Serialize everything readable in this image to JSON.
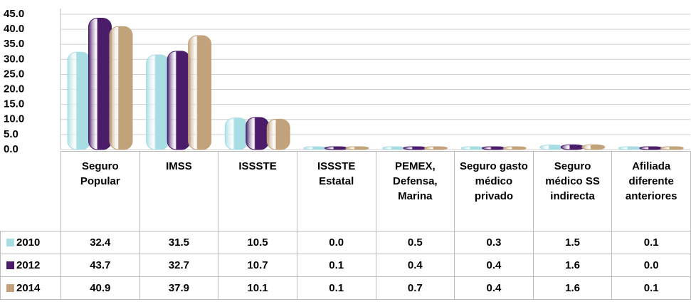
{
  "chart_data": {
    "type": "bar",
    "categories": [
      "Seguro Popular",
      "IMSS",
      "ISSSTE",
      "ISSSTE Estatal",
      "PEMEX, Defensa, Marina",
      "Seguro gasto médico privado",
      "Seguro médico SS indirecta",
      "Afiliada diferente anteriores"
    ],
    "series": [
      {
        "name": "2010",
        "color": "#a9dde4",
        "values": [
          32.4,
          31.5,
          10.5,
          0.0,
          0.5,
          0.3,
          1.5,
          0.1
        ],
        "value_labels": [
          "32.4",
          "31.5",
          "10.5",
          "0.0",
          "0.5",
          "0.3",
          "1.5",
          "0.1"
        ]
      },
      {
        "name": "2012",
        "color": "#4a1c6a",
        "values": [
          43.7,
          32.7,
          10.7,
          0.1,
          0.4,
          0.4,
          1.6,
          0.0
        ],
        "value_labels": [
          "43.7",
          "32.7",
          "10.7",
          "0.1",
          "0.4",
          "0.4",
          "1.6",
          "0.0"
        ]
      },
      {
        "name": "2014",
        "color": "#c2a27a",
        "values": [
          40.9,
          37.9,
          10.1,
          0.1,
          0.7,
          0.4,
          1.6,
          0.1
        ],
        "value_labels": [
          "40.9",
          "37.9",
          "10.1",
          "0.1",
          "0.7",
          "0.4",
          "1.6",
          "0.1"
        ]
      }
    ],
    "ylim": [
      0,
      45
    ],
    "yticks": [
      {
        "value": 0,
        "label": "0.0"
      },
      {
        "value": 5,
        "label": "5.0"
      },
      {
        "value": 10,
        "label": "10.0"
      },
      {
        "value": 15,
        "label": "15.0"
      },
      {
        "value": 20,
        "label": "20.0"
      },
      {
        "value": 25,
        "label": "25.0"
      },
      {
        "value": 30,
        "label": "30.0"
      },
      {
        "value": 35,
        "label": "35.0"
      },
      {
        "value": 40,
        "label": "40.0"
      },
      {
        "value": 45,
        "label": "45.0"
      }
    ],
    "grid": true
  }
}
